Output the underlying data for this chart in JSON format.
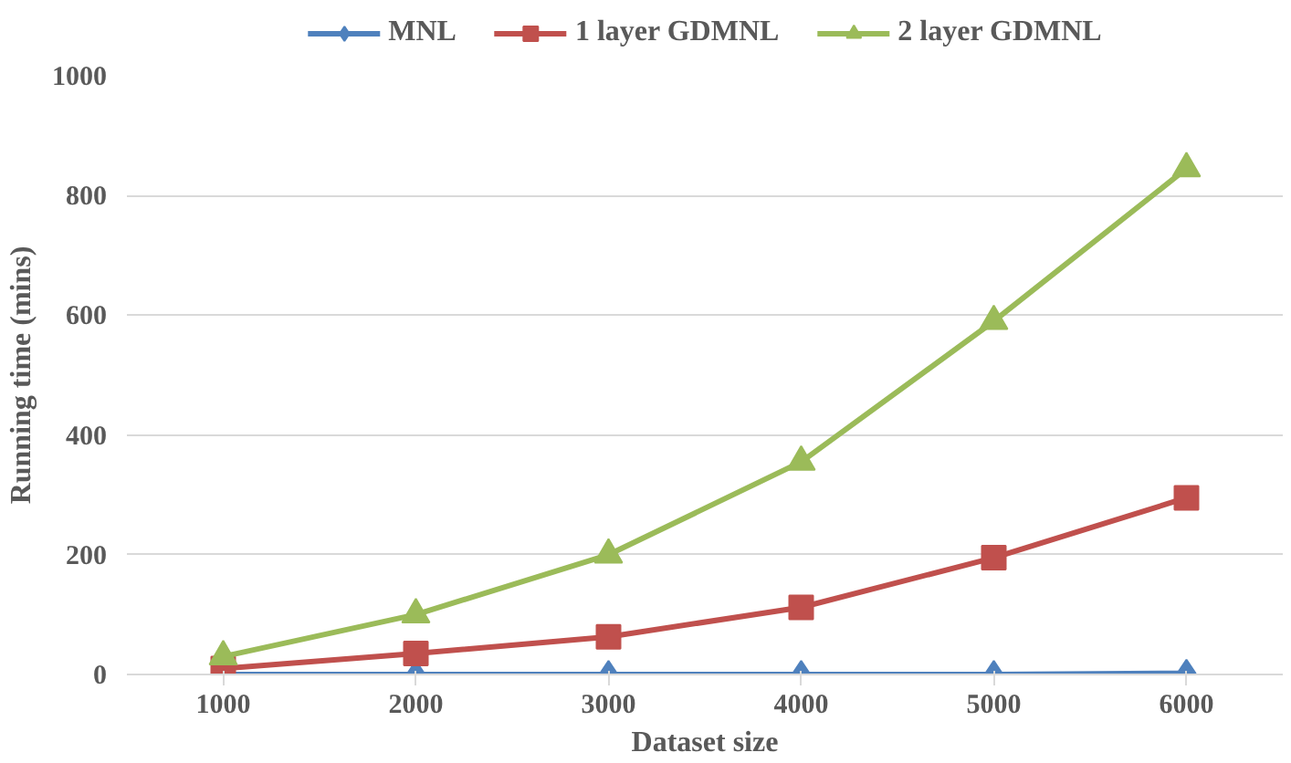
{
  "chart_data": {
    "type": "line",
    "xlabel": "Dataset size",
    "ylabel": "Running time (mins)",
    "categories": [
      "1000",
      "2000",
      "3000",
      "4000",
      "5000",
      "6000"
    ],
    "series": [
      {
        "name": "MNL",
        "color": "#4f81bd",
        "marker": "diamond",
        "values": [
          0,
          0,
          0,
          0,
          0,
          2
        ]
      },
      {
        "name": "1 layer GDMNL",
        "color": "#c0504d",
        "marker": "square",
        "values": [
          10,
          35,
          63,
          112,
          195,
          295
        ]
      },
      {
        "name": "2 layer GDMNL",
        "color": "#9bbb59",
        "marker": "triangle",
        "values": [
          30,
          100,
          200,
          355,
          590,
          845
        ]
      }
    ],
    "ylim": [
      0,
      1000
    ],
    "yticks": [
      0,
      200,
      400,
      600,
      800,
      1000
    ],
    "grid": "y",
    "legend": "top",
    "line_style": "solid"
  }
}
